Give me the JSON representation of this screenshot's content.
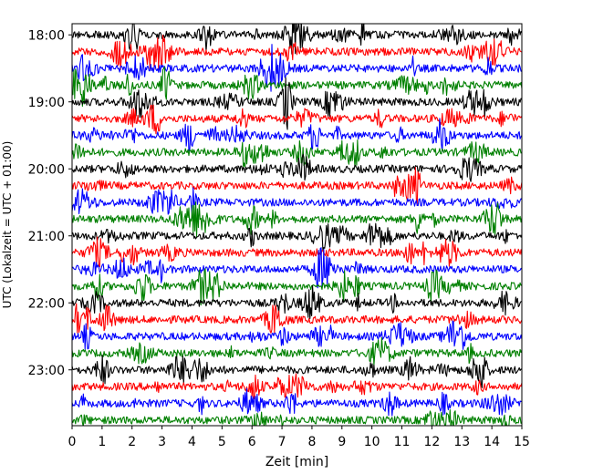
{
  "chart_data": {
    "type": "line",
    "title": "",
    "xlabel": "Zeit  [min]",
    "ylabel": "UTC (Lokalzeit = UTC + 01:00)",
    "xlim": [
      0,
      15
    ],
    "x_ticks": [
      "0",
      "1",
      "2",
      "3",
      "4",
      "5",
      "6",
      "7",
      "8",
      "9",
      "10",
      "11",
      "12",
      "13",
      "14",
      "15"
    ],
    "y_ticks": [
      "18:00",
      "19:00",
      "20:00",
      "21:00",
      "22:00",
      "23:00"
    ],
    "y_tick_minutes": [
      0,
      60,
      120,
      180,
      240,
      300
    ],
    "trace_start_minutes": 0,
    "trace_interval_minutes": 15,
    "trace_count": 24,
    "ylim_minutes": [
      -10,
      350
    ],
    "trace_colors": [
      "#000000",
      "#ff0000",
      "#0000ff",
      "#008000"
    ],
    "grid": false,
    "legend": "none"
  }
}
